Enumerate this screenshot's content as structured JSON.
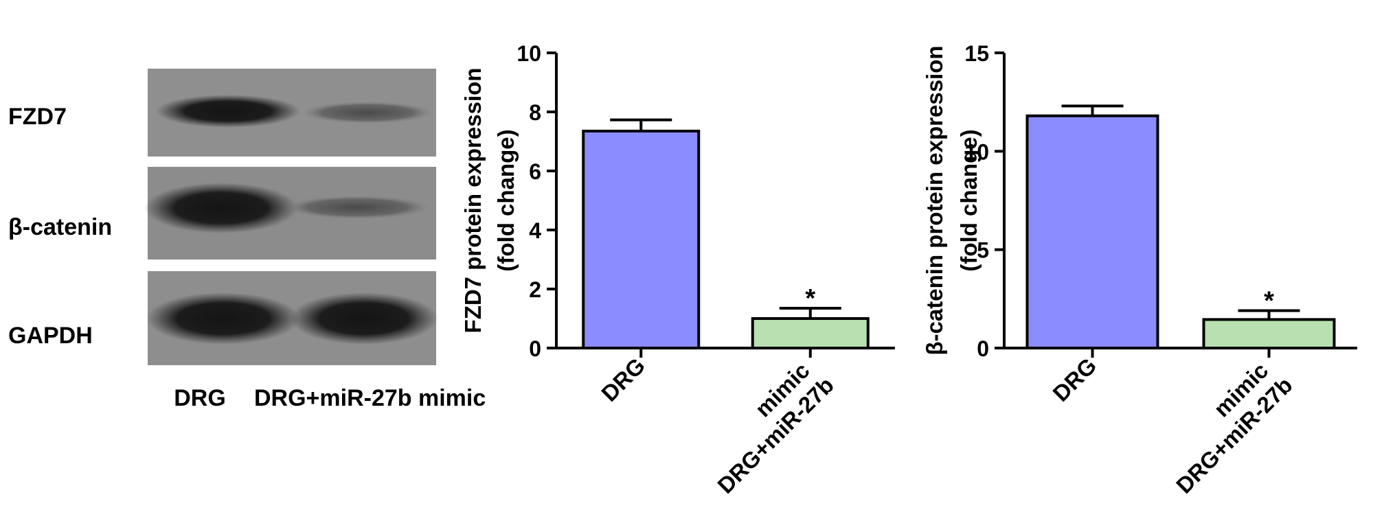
{
  "western_blot": {
    "band_labels": [
      "FZD7",
      "β-catenin",
      "GAPDH"
    ],
    "lane_labels": [
      "DRG",
      "DRG+miR-27b mimic"
    ]
  },
  "chart_data": [
    {
      "type": "bar",
      "categories": [
        "DRG",
        "DRG+miR-27b mimic"
      ],
      "category_label_lines": [
        [
          "DRG"
        ],
        [
          "DRG+miR-27b",
          "mimic"
        ]
      ],
      "values": [
        7.35,
        1.0
      ],
      "errors": [
        0.38,
        0.35
      ],
      "significance": [
        "",
        "*"
      ],
      "bar_colors": [
        "#8a8cff",
        "#b8e0b0"
      ],
      "title": "",
      "xlabel": "",
      "ylabel_lines": [
        "FZD7 protein expression",
        "(fold change)"
      ],
      "ylim": [
        0,
        10
      ],
      "yticks": [
        0,
        2,
        4,
        6,
        8,
        10
      ],
      "grid": false,
      "legend": "none"
    },
    {
      "type": "bar",
      "categories": [
        "DRG",
        "DRG+miR-27b mimic"
      ],
      "category_label_lines": [
        [
          "DRG"
        ],
        [
          "DRG+miR-27b",
          "mimic"
        ]
      ],
      "values": [
        11.8,
        1.45
      ],
      "errors": [
        0.5,
        0.45
      ],
      "significance": [
        "",
        "*"
      ],
      "bar_colors": [
        "#8a8cff",
        "#b8e0b0"
      ],
      "title": "",
      "xlabel": "",
      "ylabel_lines": [
        "β-catenin protein expression",
        "(fold change)"
      ],
      "ylim": [
        0,
        15
      ],
      "yticks": [
        0,
        5,
        10,
        15
      ],
      "grid": false,
      "legend": "none"
    }
  ]
}
